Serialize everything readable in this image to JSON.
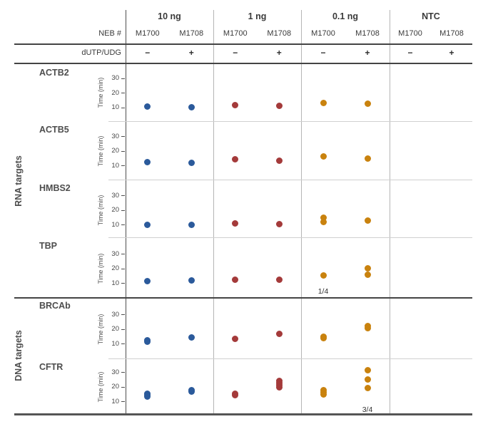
{
  "figure": {
    "header": {
      "neb_label": "NEB #",
      "dutp_label": "dUTP/UDG",
      "groups": [
        {
          "label": "10 ng",
          "color": "#2b5a9b",
          "columns": [
            {
              "name": "M1700",
              "dutp": "−"
            },
            {
              "name": "M1708",
              "dutp": "+"
            }
          ]
        },
        {
          "label": "1 ng",
          "color": "#a43a3a",
          "columns": [
            {
              "name": "M1700",
              "dutp": "−"
            },
            {
              "name": "M1708",
              "dutp": "+"
            }
          ]
        },
        {
          "label": "0.1 ng",
          "color": "#c9820e",
          "columns": [
            {
              "name": "M1700",
              "dutp": "−"
            },
            {
              "name": "M1708",
              "dutp": "+"
            }
          ]
        },
        {
          "label": "NTC",
          "color": "#9a9a9a",
          "columns": [
            {
              "name": "M1700",
              "dutp": "−"
            },
            {
              "name": "M1708",
              "dutp": "+"
            }
          ]
        }
      ]
    },
    "sections": [
      {
        "label": "RNA targets",
        "row_indices": [
          0,
          1,
          2,
          3
        ]
      },
      {
        "label": "DNA targets",
        "row_indices": [
          4,
          5
        ]
      }
    ]
  },
  "axis": {
    "label": "Time (min)",
    "ticks": [
      30,
      20,
      10
    ]
  },
  "chart_data": {
    "type": "scatter",
    "ylabel": "Time (min)",
    "ylim": [
      5,
      35
    ],
    "grid": false,
    "x_groups": [
      "10 ng",
      "1 ng",
      "0.1 ng",
      "NTC"
    ],
    "x_columns": [
      "M1700",
      "M1708"
    ],
    "series_colors": {
      "10 ng": "#2b5a9b",
      "1 ng": "#a43a3a",
      "0.1 ng": "#c9820e",
      "NTC": "#9a9a9a"
    },
    "rows": [
      {
        "target": "ACTB2",
        "section": "RNA targets",
        "values_min": [
          [
            10.5
          ],
          [
            10
          ],
          [
            11.5
          ],
          [
            11
          ],
          [
            13
          ],
          [
            12.3
          ],
          [],
          []
        ],
        "annotations": [
          null,
          null,
          null,
          null,
          null,
          null,
          null,
          null
        ]
      },
      {
        "target": "ACTB5",
        "section": "RNA targets",
        "values_min": [
          [
            12.4
          ],
          [
            11.9
          ],
          [
            14.2
          ],
          [
            13.3
          ],
          [
            16.3
          ],
          [
            14.8
          ],
          [],
          []
        ],
        "annotations": [
          null,
          null,
          null,
          null,
          null,
          null,
          null,
          null
        ]
      },
      {
        "target": "HMBS2",
        "section": "RNA targets",
        "values_min": [
          [
            10
          ],
          [
            9.6
          ],
          [
            10.8
          ],
          [
            10.2
          ],
          [
            14.8,
            11.8
          ],
          [
            12.6
          ],
          [],
          []
        ],
        "annotations": [
          null,
          null,
          null,
          null,
          null,
          null,
          null,
          null
        ]
      },
      {
        "target": "TBP",
        "section": "RNA targets",
        "values_min": [
          [
            11
          ],
          [
            11.6
          ],
          [
            12
          ],
          [
            12.4
          ],
          [
            15.3
          ],
          [
            19.8,
            15.8
          ],
          [],
          []
        ],
        "annotations": [
          null,
          null,
          null,
          null,
          "1/4",
          null,
          null,
          null
        ]
      },
      {
        "target": "BRCAb",
        "section": "DNA targets",
        "values_min": [
          [
            12,
            11.4
          ],
          [
            14
          ],
          [
            13.2
          ],
          [
            16.4
          ],
          [
            14.6,
            13.8
          ],
          [
            21.8,
            20.3
          ],
          [],
          []
        ],
        "annotations": [
          null,
          null,
          null,
          null,
          null,
          null,
          null,
          null
        ]
      },
      {
        "target": "CFTR",
        "section": "DNA targets",
        "values_min": [
          [
            15.3,
            14.3,
            13.4
          ],
          [
            17.4,
            16.8
          ],
          [
            15,
            14
          ],
          [
            24,
            22.5,
            21,
            19.6
          ],
          [
            17.8,
            16.3,
            14.8
          ],
          [
            31.3,
            24.8,
            19
          ],
          [],
          []
        ],
        "annotations": [
          null,
          null,
          null,
          null,
          null,
          "3/4",
          null,
          null
        ]
      }
    ]
  }
}
